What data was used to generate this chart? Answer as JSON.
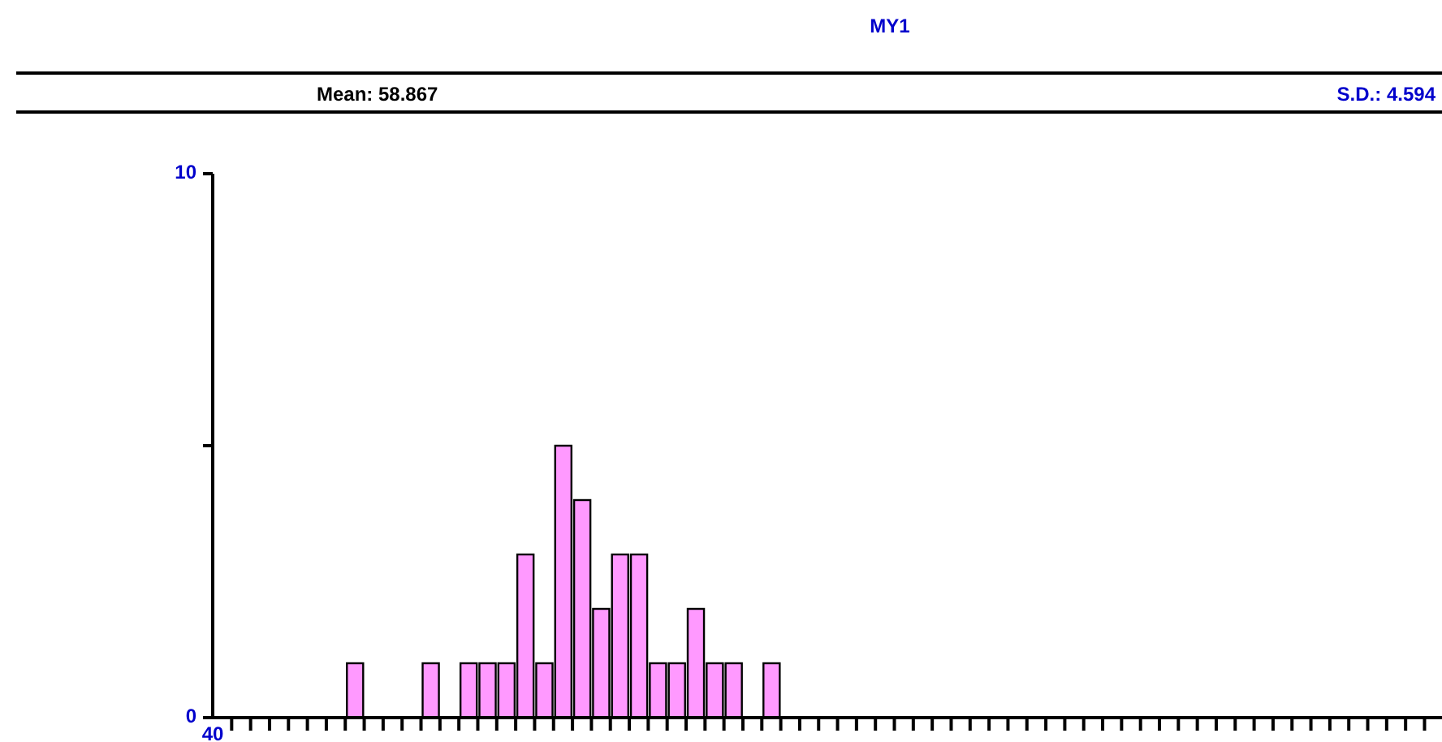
{
  "chart_data": {
    "type": "bar",
    "title": "MY1",
    "annotations": [
      "Mean: 58.867",
      "S.D.: 4.594",
      "40"
    ],
    "categories": [
      null,
      null,
      null,
      null,
      null,
      null,
      null,
      null,
      null,
      null,
      null,
      null,
      null,
      null,
      null,
      null,
      null,
      null,
      null,
      null,
      null,
      null,
      null,
      null,
      null,
      null,
      null,
      null,
      null,
      null,
      null,
      null,
      null,
      null,
      null,
      null,
      null,
      null,
      null,
      null,
      null,
      null,
      null,
      null,
      null,
      null,
      null,
      null,
      null,
      null,
      null,
      null,
      null,
      null,
      null,
      null,
      null,
      null,
      null,
      null,
      null,
      null,
      null,
      null,
      null
    ],
    "values": [
      0,
      0,
      0,
      0,
      0,
      0,
      0,
      1,
      0,
      0,
      0,
      1,
      0,
      1,
      1,
      1,
      3,
      1,
      5,
      4,
      2,
      3,
      3,
      1,
      1,
      2,
      1,
      1,
      0,
      1,
      0,
      0,
      0,
      0,
      0,
      0,
      0,
      0,
      0,
      0,
      0,
      0,
      0,
      0,
      0,
      0,
      0,
      0,
      0,
      0,
      0,
      0,
      0,
      0,
      0,
      0,
      0,
      0,
      0,
      0,
      0,
      0,
      0,
      0,
      0
    ],
    "color": "#ff99ff",
    "ylim": [
      0,
      10
    ],
    "yticks": [
      0,
      {
        "value": 5,
        "label": null
      },
      10
    ],
    "grid": false
  }
}
